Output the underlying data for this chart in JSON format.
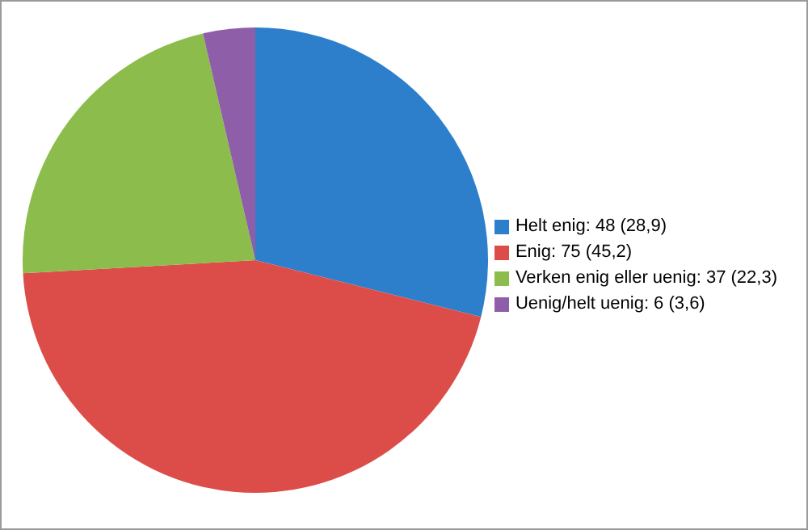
{
  "chart_data": {
    "type": "pie",
    "categories": [
      "Helt enig",
      "Enig",
      "Verken enig eller uenig",
      "Uenig/helt uenig"
    ],
    "values": [
      48,
      75,
      37,
      6
    ],
    "value_labels": [
      "48 (28,9)",
      "75 (45,2)",
      "37 (22,3)",
      "6 (3,6)"
    ],
    "colors": [
      "#2d7fcb",
      "#dc4d4a",
      "#8bbc4c",
      "#8e5ea8"
    ],
    "legend": "right"
  }
}
